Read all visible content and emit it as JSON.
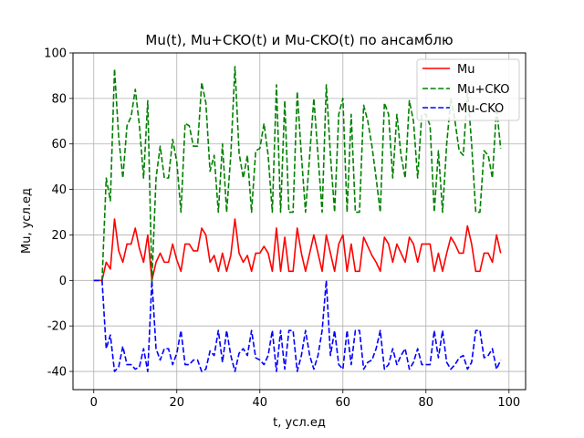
{
  "chart_data": {
    "type": "line",
    "title": "Mu(t),  Mu+CKO(t) и Mu-CKO(t) по ансамблю",
    "xlabel": "t, усл.ед",
    "ylabel": "Mu, усл.ед",
    "xlim": [
      -5,
      104
    ],
    "ylim": [
      -48,
      100
    ],
    "xticks": [
      0,
      20,
      40,
      60,
      80,
      100
    ],
    "yticks": [
      -40,
      -20,
      0,
      20,
      40,
      60,
      80,
      100
    ],
    "grid": true,
    "legend_position": "top-right",
    "x": [
      0,
      1,
      2,
      3,
      4,
      5,
      6,
      7,
      8,
      9,
      10,
      11,
      12,
      13,
      14,
      15,
      16,
      17,
      18,
      19,
      20,
      21,
      22,
      23,
      24,
      25,
      26,
      27,
      28,
      29,
      30,
      31,
      32,
      33,
      34,
      35,
      36,
      37,
      38,
      39,
      40,
      41,
      42,
      43,
      44,
      45,
      46,
      47,
      48,
      49,
      50,
      51,
      52,
      53,
      54,
      55,
      56,
      57,
      58,
      59,
      60,
      61,
      62,
      63,
      64,
      65,
      66,
      67,
      68,
      69,
      70,
      71,
      72,
      73,
      74,
      75,
      76,
      77,
      78,
      79,
      80,
      81,
      82,
      83,
      84,
      85,
      86,
      87,
      88,
      89,
      90,
      91,
      92,
      93,
      94,
      95,
      96,
      97,
      98
    ],
    "series": [
      {
        "name": "Mu",
        "color": "#ff0000",
        "style": "solid",
        "values": [
          0,
          0,
          0,
          8,
          5,
          27,
          13,
          8,
          16,
          16,
          23,
          14,
          8,
          20,
          0,
          8,
          12,
          8,
          8,
          16,
          9,
          4,
          16,
          16,
          13,
          13,
          23,
          20,
          8,
          11,
          4,
          12,
          4,
          11,
          27,
          12,
          8,
          11,
          4,
          12,
          12,
          15,
          12,
          4,
          23,
          4,
          19,
          4,
          4,
          23,
          12,
          4,
          12,
          20,
          12,
          4,
          20,
          12,
          4,
          16,
          20,
          4,
          16,
          4,
          4,
          19,
          15,
          11,
          8,
          4,
          19,
          16,
          8,
          16,
          12,
          8,
          19,
          16,
          8,
          16,
          16,
          16,
          4,
          12,
          4,
          12,
          19,
          16,
          12,
          12,
          24,
          16,
          4,
          4,
          12,
          12,
          8,
          20,
          12
        ]
      },
      {
        "name": "Mu+CKO",
        "color": "#008000",
        "style": "dashed",
        "values": [
          0,
          0,
          0,
          45,
          35,
          93,
          63,
          45,
          68,
          72,
          84,
          68,
          45,
          79,
          0,
          45,
          59,
          45,
          45,
          62,
          52,
          30,
          69,
          68,
          59,
          59,
          87,
          78,
          48,
          55,
          30,
          60,
          30,
          55,
          94,
          56,
          45,
          55,
          30,
          57,
          58,
          69,
          55,
          30,
          86,
          30,
          79,
          30,
          30,
          83,
          55,
          30,
          55,
          80,
          55,
          30,
          86,
          55,
          30,
          73,
          80,
          30,
          73,
          30,
          30,
          77,
          70,
          59,
          45,
          30,
          78,
          73,
          45,
          73,
          55,
          45,
          79,
          70,
          45,
          73,
          73,
          68,
          30,
          57,
          30,
          60,
          80,
          70,
          57,
          55,
          84,
          60,
          30,
          30,
          57,
          55,
          45,
          76,
          58
        ]
      },
      {
        "name": "Mu-CKO",
        "color": "#0000ff",
        "style": "dashed",
        "values": [
          0,
          0,
          0,
          -30,
          -24,
          -40,
          -38,
          -29,
          -37,
          -37,
          -39,
          -38,
          -30,
          -40,
          0,
          -30,
          -35,
          -30,
          -30,
          -37,
          -32,
          -22,
          -37,
          -37,
          -35,
          -35,
          -40,
          -39,
          -31,
          -33,
          -22,
          -36,
          -22,
          -33,
          -40,
          -32,
          -30,
          -33,
          -22,
          -34,
          -35,
          -37,
          -33,
          -22,
          -40,
          -22,
          -39,
          -22,
          -22,
          -40,
          -33,
          -22,
          -33,
          -39,
          -33,
          -22,
          0,
          -33,
          -22,
          -37,
          -39,
          -22,
          -37,
          -22,
          -22,
          -39,
          -36,
          -35,
          -30,
          -22,
          -39,
          -37,
          -30,
          -37,
          -33,
          -30,
          -39,
          -36,
          -30,
          -37,
          -37,
          -37,
          -22,
          -34,
          -22,
          -36,
          -39,
          -37,
          -34,
          -33,
          -39,
          -36,
          -22,
          -22,
          -34,
          -33,
          -30,
          -39,
          -35
        ]
      }
    ]
  }
}
